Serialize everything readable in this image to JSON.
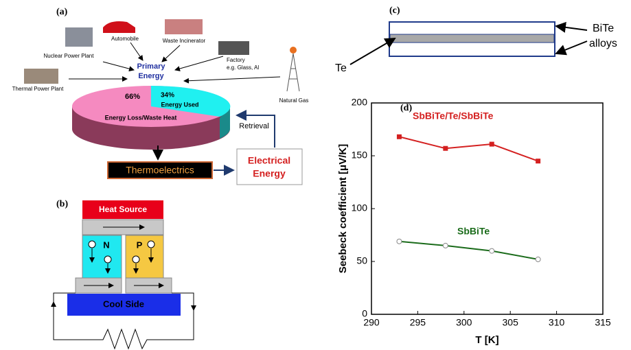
{
  "panel_a": {
    "label": "(a)",
    "sources": [
      "Nuclear Power Plant",
      "Automobile",
      "Waste Incinerator",
      "Factory",
      "e.g. Glass, Al",
      "Thermal Power Plant",
      "Natural Gas"
    ],
    "primary_energy": [
      "Primary",
      "Energy"
    ],
    "loss_pct": "66%",
    "used_pct": "34%",
    "used_text": "Energy Used",
    "loss_text": "Energy Loss/Waste Heat",
    "retrieval": "Retrieval",
    "thermoelectrics": "Thermoelectrics",
    "electrical_energy": [
      "Electrical",
      "Energy"
    ]
  },
  "panel_b": {
    "label": "(b)",
    "heat_source": "Heat Source",
    "n": "N",
    "p": "P",
    "cool_side": "Cool Side"
  },
  "panel_c": {
    "label": "(c)",
    "bite": "BiTe",
    "alloys": "alloys",
    "te": "Te"
  },
  "chart_data": {
    "type": "line",
    "panel_label": "(d)",
    "x_label": "T [K]",
    "y_label": "Seebeck coefficient [μV/K]",
    "x": [
      293,
      298,
      303,
      308
    ],
    "series": [
      {
        "name": "SbBiTe/Te/SbBiTe",
        "color": "#d42020",
        "marker": "square",
        "values": [
          168,
          157,
          161,
          145
        ]
      },
      {
        "name": "SbBiTe",
        "color": "#1a6b1a",
        "marker": "open-circle",
        "values": [
          69,
          65,
          60,
          52
        ]
      }
    ],
    "xlim": [
      290,
      315
    ],
    "xticks": [
      290,
      295,
      300,
      305,
      310,
      315
    ],
    "ylim": [
      0,
      200
    ],
    "yticks": [
      0,
      50,
      100,
      150,
      200
    ]
  }
}
